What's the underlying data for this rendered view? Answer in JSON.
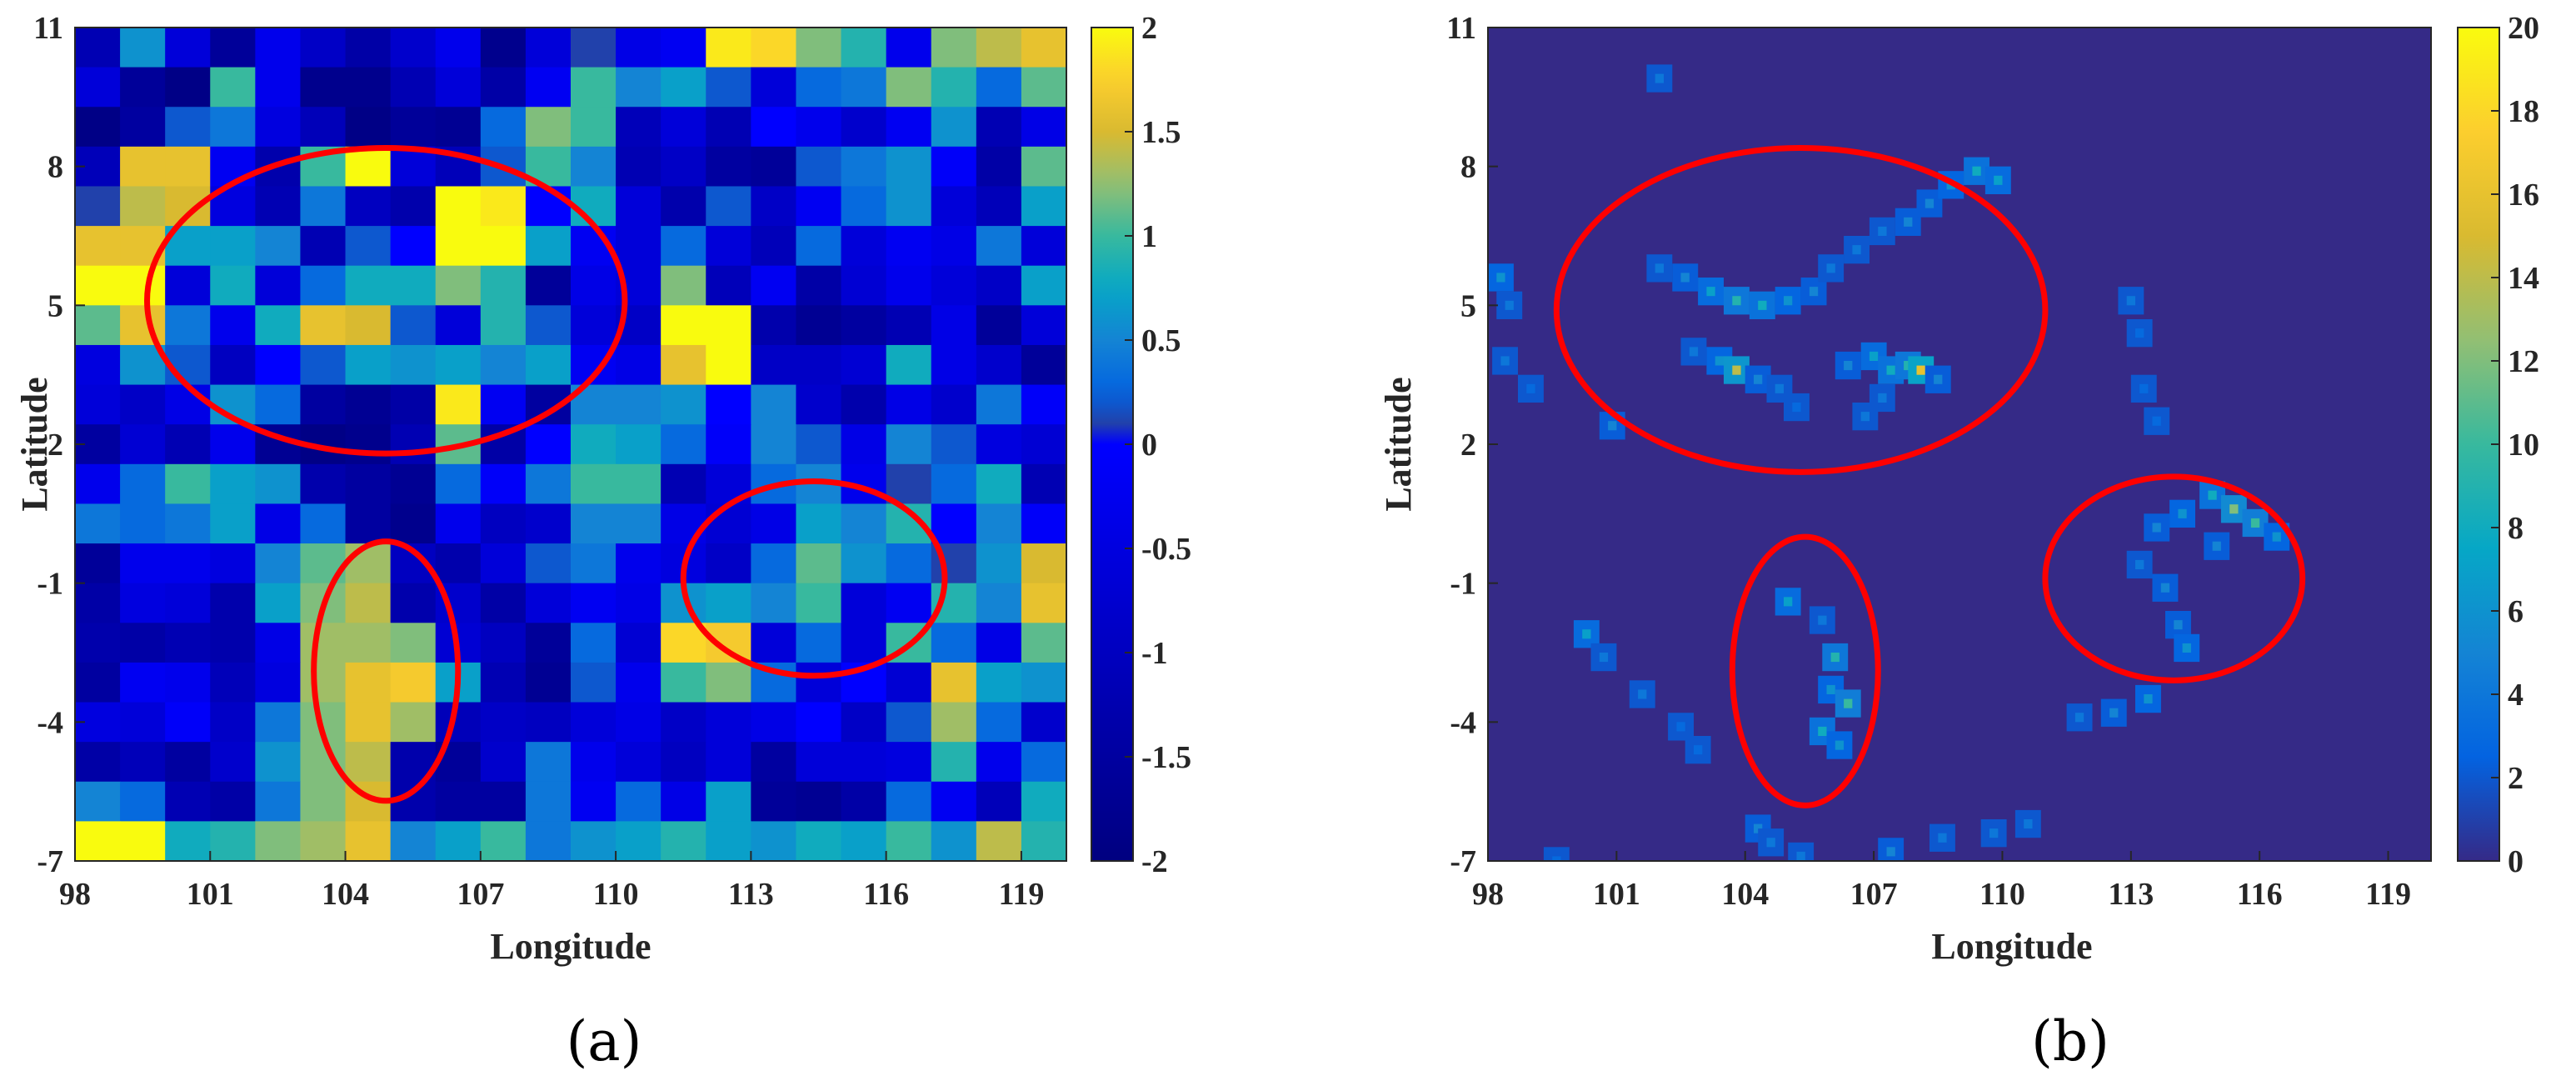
{
  "chart_data": [
    {
      "type": "heatmap",
      "panel_label": "(a)",
      "xlabel": "Longitude",
      "ylabel": "Latitude",
      "xlim": [
        98,
        120
      ],
      "ylim": [
        -7,
        11
      ],
      "x_ticks": [
        "98",
        "101",
        "104",
        "107",
        "110",
        "113",
        "116",
        "119"
      ],
      "x_tick_values": [
        98,
        101,
        104,
        107,
        110,
        113,
        116,
        119
      ],
      "y_ticks": [
        "11",
        "8",
        "5",
        "2",
        "-1",
        "-4",
        "-7"
      ],
      "y_tick_values": [
        11,
        8,
        5,
        2,
        -1,
        -4,
        -7
      ],
      "colorbar": {
        "range": [
          -2,
          2
        ],
        "ticks": [
          "2",
          "1.5",
          "1",
          "0.5",
          "0",
          "-0.5",
          "-1",
          "-1.5",
          "-2"
        ],
        "tick_values": [
          2,
          1.5,
          1,
          0.5,
          0,
          -0.5,
          -1,
          -1.5,
          -2
        ]
      },
      "grid": false,
      "grid_rows_top_to_bottom": [
        [
          -1.2,
          0.6,
          -0.6,
          -1.6,
          -0.3,
          -0.9,
          -1.4,
          -0.8,
          -0.3,
          -1.8,
          -0.6,
          0.1,
          -0.4,
          -0.2,
          1.9,
          1.8,
          1.2,
          0.9,
          -0.3,
          1.2,
          1.4,
          1.6
        ],
        [
          -0.6,
          -1.6,
          -1.9,
          1.0,
          -0.3,
          -1.8,
          -1.8,
          -1.2,
          -0.6,
          -1.4,
          -0.2,
          1.0,
          0.5,
          0.7,
          0.2,
          -0.6,
          0.3,
          0.4,
          1.2,
          0.9,
          0.3,
          1.1
        ],
        [
          -1.9,
          -1.5,
          0.2,
          0.4,
          -0.5,
          -1.1,
          -1.9,
          -1.6,
          -1.7,
          0.3,
          1.2,
          1.0,
          -1.1,
          -0.6,
          -1.2,
          0.0,
          -0.3,
          -0.8,
          -0.2,
          0.6,
          -1.2,
          -0.4
        ],
        [
          -1.1,
          1.6,
          1.6,
          -0.2,
          -1.3,
          1.0,
          2.0,
          -0.6,
          -1.1,
          0.2,
          1.0,
          0.5,
          -1.2,
          -0.9,
          -1.5,
          -1.6,
          0.2,
          0.4,
          0.6,
          -0.1,
          -1.4,
          1.1
        ],
        [
          0.1,
          1.4,
          1.5,
          -0.5,
          -1.2,
          0.4,
          -1.0,
          -1.3,
          2.0,
          1.9,
          0.0,
          0.8,
          -0.6,
          -1.3,
          0.2,
          -0.9,
          -0.2,
          0.3,
          0.6,
          -0.6,
          -1.1,
          0.7
        ],
        [
          1.6,
          1.6,
          0.7,
          0.7,
          0.5,
          -1.2,
          0.2,
          0.0,
          2.0,
          2.0,
          0.7,
          -0.2,
          -0.6,
          0.3,
          -0.6,
          -1.1,
          0.3,
          -0.6,
          -0.2,
          -0.4,
          0.4,
          -0.6
        ],
        [
          2.0,
          2.0,
          -0.6,
          0.8,
          -0.6,
          0.3,
          0.8,
          0.8,
          1.2,
          0.9,
          -1.6,
          -0.4,
          -0.6,
          1.2,
          -1.1,
          -0.2,
          -1.4,
          -0.7,
          -0.3,
          -0.6,
          -0.9,
          0.7
        ],
        [
          1.1,
          1.6,
          0.4,
          -0.3,
          0.8,
          1.6,
          1.5,
          0.2,
          -0.6,
          0.9,
          0.2,
          -0.6,
          -0.9,
          2.0,
          2.0,
          -1.3,
          -1.7,
          -1.5,
          -1.2,
          -0.4,
          -1.6,
          -0.6
        ],
        [
          -0.5,
          0.6,
          0.2,
          -1.0,
          0.0,
          0.2,
          0.7,
          0.6,
          0.7,
          0.5,
          0.7,
          -0.2,
          -0.4,
          1.6,
          2.0,
          -0.9,
          -0.9,
          -0.7,
          0.8,
          -0.4,
          -0.8,
          -1.6
        ],
        [
          -0.6,
          -0.9,
          -0.4,
          0.6,
          0.3,
          -1.5,
          -1.7,
          -1.4,
          1.9,
          -0.2,
          -1.5,
          0.5,
          0.5,
          0.6,
          0.0,
          0.5,
          -0.8,
          -1.3,
          -0.4,
          -0.8,
          0.4,
          -0.1
        ],
        [
          -1.5,
          -0.7,
          -1.2,
          -0.3,
          -1.7,
          -1.9,
          -1.8,
          -1.2,
          1.1,
          -1.4,
          0.0,
          0.8,
          0.7,
          0.3,
          -0.1,
          0.5,
          0.2,
          -0.4,
          0.5,
          0.2,
          -0.5,
          -0.7
        ],
        [
          -0.3,
          0.3,
          1.0,
          0.7,
          0.6,
          -1.3,
          -1.5,
          -1.7,
          0.3,
          -0.1,
          0.4,
          1.0,
          1.0,
          -1.2,
          -0.6,
          0.3,
          0.5,
          -0.3,
          0.1,
          0.3,
          0.8,
          -1.2
        ],
        [
          0.4,
          0.3,
          0.4,
          0.7,
          -0.4,
          0.3,
          -1.5,
          -1.8,
          -0.3,
          -1.0,
          -0.8,
          0.5,
          0.5,
          -0.4,
          -0.7,
          -0.4,
          0.7,
          0.5,
          0.9,
          0.0,
          0.5,
          -0.1
        ],
        [
          -1.6,
          -0.3,
          -0.3,
          -0.5,
          0.5,
          1.1,
          1.3,
          -1.0,
          -1.3,
          -0.6,
          0.2,
          0.4,
          -0.3,
          -0.5,
          -0.9,
          0.3,
          1.1,
          0.6,
          0.3,
          0.1,
          0.6,
          1.5
        ],
        [
          -1.4,
          -0.5,
          -0.6,
          -1.3,
          0.7,
          1.2,
          1.4,
          -1.3,
          -0.8,
          -1.4,
          -0.6,
          -0.2,
          -0.4,
          0.6,
          0.7,
          0.5,
          1.0,
          -0.6,
          -0.2,
          0.9,
          0.5,
          1.6
        ],
        [
          -1.3,
          -1.4,
          -1.2,
          -1.3,
          -0.4,
          1.3,
          1.3,
          1.2,
          -0.7,
          -1.0,
          -1.6,
          0.3,
          -0.7,
          1.8,
          1.7,
          -0.6,
          0.3,
          -0.6,
          1.0,
          0.3,
          -0.4,
          1.1
        ],
        [
          -1.5,
          -0.2,
          -0.3,
          -1.1,
          -0.5,
          1.3,
          1.6,
          1.7,
          0.7,
          -1.2,
          -1.7,
          0.2,
          -0.3,
          1.0,
          1.2,
          0.3,
          -0.6,
          0.0,
          -0.7,
          1.6,
          0.7,
          0.6
        ],
        [
          -0.5,
          -0.6,
          -0.1,
          -0.9,
          0.4,
          1.2,
          1.6,
          1.3,
          -1.1,
          -0.9,
          -1.0,
          -0.6,
          -0.4,
          -0.9,
          -0.6,
          -0.4,
          0.0,
          -0.9,
          0.2,
          1.3,
          0.3,
          -0.8
        ],
        [
          -1.4,
          -1.1,
          -1.5,
          -0.8,
          0.6,
          1.2,
          1.4,
          -1.3,
          -1.6,
          -0.8,
          0.4,
          -0.3,
          -0.6,
          -1.0,
          -0.6,
          -1.5,
          -0.6,
          -0.6,
          -0.5,
          0.9,
          -0.3,
          0.3
        ],
        [
          0.5,
          0.3,
          -1.2,
          -1.4,
          0.4,
          1.2,
          1.5,
          -1.3,
          -1.5,
          -1.5,
          0.4,
          -0.2,
          0.3,
          -0.4,
          0.7,
          -1.6,
          -1.7,
          -1.4,
          0.3,
          -0.2,
          -1.1,
          0.8
        ],
        [
          2.0,
          2.0,
          0.8,
          0.9,
          1.2,
          1.3,
          1.6,
          0.5,
          0.7,
          1.0,
          0.4,
          0.6,
          0.7,
          0.9,
          0.7,
          0.6,
          0.8,
          0.7,
          1.0,
          0.6,
          1.4,
          0.9
        ]
      ],
      "annotations": [
        {
          "shape": "ellipse",
          "color": "#ff0000",
          "center": [
            104.9,
            5.1
          ],
          "radii_deg": [
            5.3,
            3.3
          ]
        },
        {
          "shape": "ellipse",
          "color": "#ff0000",
          "center": [
            104.9,
            -2.9
          ],
          "radii_deg": [
            1.6,
            2.8
          ]
        },
        {
          "shape": "ellipse",
          "color": "#ff0000",
          "center": [
            114.4,
            -0.9
          ],
          "radii_deg": [
            2.9,
            2.1
          ]
        }
      ]
    },
    {
      "type": "heatmap",
      "panel_label": "(b)",
      "xlabel": "Longitude",
      "ylabel": "Latitude",
      "xlim": [
        98,
        120
      ],
      "ylim": [
        -7,
        11
      ],
      "x_ticks": [
        "98",
        "101",
        "104",
        "107",
        "110",
        "113",
        "116",
        "119"
      ],
      "x_tick_values": [
        98,
        101,
        104,
        107,
        110,
        113,
        116,
        119
      ],
      "y_ticks": [
        "11",
        "8",
        "5",
        "2",
        "-1",
        "-4",
        "-7"
      ],
      "y_tick_values": [
        11,
        8,
        5,
        2,
        -1,
        -4,
        -7
      ],
      "colorbar": {
        "range": [
          0,
          20
        ],
        "ticks": [
          "20",
          "18",
          "16",
          "14",
          "12",
          "10",
          "8",
          "6",
          "4",
          "2",
          "0"
        ],
        "tick_values": [
          20,
          18,
          16,
          14,
          12,
          10,
          8,
          6,
          4,
          2,
          0
        ]
      },
      "grid": false,
      "background_value": 0,
      "hotspots": [
        [
          102.0,
          5.8,
          4
        ],
        [
          102.6,
          5.6,
          5
        ],
        [
          103.2,
          5.3,
          7
        ],
        [
          103.8,
          5.1,
          9
        ],
        [
          104.4,
          5.0,
          8
        ],
        [
          105.0,
          5.1,
          6
        ],
        [
          105.6,
          5.3,
          5
        ],
        [
          106.0,
          5.8,
          4
        ],
        [
          106.6,
          6.2,
          4
        ],
        [
          107.2,
          6.6,
          4
        ],
        [
          107.8,
          6.8,
          5
        ],
        [
          108.3,
          7.2,
          5
        ],
        [
          108.8,
          7.6,
          6
        ],
        [
          109.4,
          7.9,
          8
        ],
        [
          109.9,
          7.7,
          7
        ],
        [
          102.8,
          4.0,
          4
        ],
        [
          103.4,
          3.8,
          6
        ],
        [
          103.8,
          3.6,
          14
        ],
        [
          104.3,
          3.4,
          5
        ],
        [
          104.8,
          3.2,
          4
        ],
        [
          106.4,
          3.7,
          5
        ],
        [
          107.0,
          3.9,
          7
        ],
        [
          107.4,
          3.6,
          8
        ],
        [
          107.8,
          3.7,
          9
        ],
        [
          108.1,
          3.6,
          16
        ],
        [
          108.5,
          3.4,
          5
        ],
        [
          107.2,
          3.0,
          4
        ],
        [
          106.8,
          2.6,
          4
        ],
        [
          105.2,
          2.8,
          3
        ],
        [
          98.3,
          5.6,
          6
        ],
        [
          98.5,
          5.0,
          4
        ],
        [
          98.4,
          3.8,
          4
        ],
        [
          99.0,
          3.2,
          3
        ],
        [
          100.9,
          2.4,
          5
        ],
        [
          102.0,
          9.9,
          4
        ],
        [
          113.0,
          5.1,
          4
        ],
        [
          113.2,
          4.4,
          3
        ],
        [
          113.3,
          3.2,
          3
        ],
        [
          113.6,
          2.5,
          3
        ],
        [
          113.6,
          0.2,
          5
        ],
        [
          114.2,
          0.5,
          6
        ],
        [
          114.9,
          0.9,
          8
        ],
        [
          115.4,
          0.6,
          12
        ],
        [
          115.9,
          0.3,
          10
        ],
        [
          116.4,
          0.0,
          6
        ],
        [
          113.2,
          -0.6,
          4
        ],
        [
          113.8,
          -1.1,
          5
        ],
        [
          114.1,
          -1.9,
          5
        ],
        [
          114.3,
          -2.4,
          6
        ],
        [
          115.0,
          -0.2,
          5
        ],
        [
          105.0,
          -1.4,
          7
        ],
        [
          105.8,
          -1.8,
          4
        ],
        [
          106.1,
          -2.6,
          9
        ],
        [
          106.0,
          -3.3,
          6
        ],
        [
          106.4,
          -3.6,
          10
        ],
        [
          105.8,
          -4.2,
          8
        ],
        [
          106.2,
          -4.5,
          6
        ],
        [
          100.3,
          -2.1,
          7
        ],
        [
          100.7,
          -2.6,
          4
        ],
        [
          101.6,
          -3.4,
          4
        ],
        [
          102.5,
          -4.1,
          3
        ],
        [
          102.9,
          -4.6,
          3
        ],
        [
          104.3,
          -6.3,
          5
        ],
        [
          104.6,
          -6.6,
          4
        ],
        [
          105.3,
          -6.9,
          4
        ],
        [
          107.4,
          -6.8,
          5
        ],
        [
          108.6,
          -6.5,
          4
        ],
        [
          109.8,
          -6.4,
          4
        ],
        [
          110.6,
          -6.2,
          4
        ],
        [
          111.8,
          -3.9,
          4
        ],
        [
          112.6,
          -3.8,
          5
        ],
        [
          113.4,
          -3.5,
          6
        ],
        [
          99.6,
          -7.0,
          3
        ]
      ],
      "annotations": [
        {
          "shape": "ellipse",
          "color": "#ff0000",
          "center": [
            105.3,
            4.9
          ],
          "radii_deg": [
            5.7,
            3.5
          ]
        },
        {
          "shape": "ellipse",
          "color": "#ff0000",
          "center": [
            105.4,
            -2.9
          ],
          "radii_deg": [
            1.7,
            2.9
          ]
        },
        {
          "shape": "ellipse",
          "color": "#ff0000",
          "center": [
            114.0,
            -0.9
          ],
          "radii_deg": [
            3.0,
            2.2
          ]
        }
      ]
    }
  ]
}
